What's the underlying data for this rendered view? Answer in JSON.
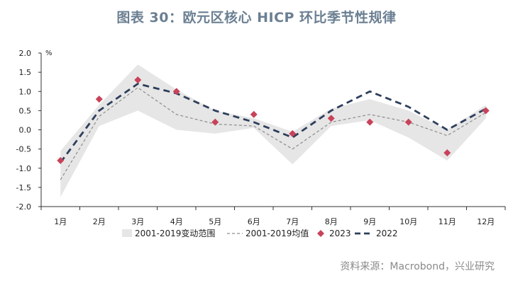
{
  "title": "图表 30：欧元区核心 HICP 环比季节性规律",
  "source": "资料来源：Macrobond，兴业研究",
  "chart_data": {
    "type": "line",
    "unit": "%",
    "categories": [
      "1月",
      "2月",
      "3月",
      "4月",
      "5月",
      "6月",
      "7月",
      "8月",
      "9月",
      "10月",
      "11月",
      "12月"
    ],
    "ylim": [
      -2.0,
      2.0
    ],
    "yticks": [
      2.0,
      1.5,
      1.0,
      0.5,
      0.0,
      -0.5,
      -1.0,
      -1.5,
      -2.0
    ],
    "ytick_labels": [
      "2.0",
      "1.5",
      "1.0",
      "0.5",
      "0.0",
      "-0.5",
      "-1.0",
      "-1.5",
      "-2.0"
    ],
    "legend_placement": "bottom",
    "band": {
      "name": "2001-2019变动范围",
      "color": "#e6e6e6",
      "lower": [
        -1.75,
        0.1,
        0.5,
        0.0,
        -0.1,
        0.05,
        -0.9,
        0.1,
        0.25,
        -0.2,
        -0.8,
        0.3
      ],
      "upper": [
        -0.55,
        0.65,
        1.7,
        1.05,
        0.5,
        0.3,
        -0.05,
        0.55,
        0.8,
        0.5,
        0.0,
        0.65
      ]
    },
    "series": [
      {
        "name": "2001-2019均值",
        "style": "dashed-thin",
        "color": "#8c8c8c",
        "values": [
          -1.3,
          0.35,
          1.1,
          0.4,
          0.15,
          0.1,
          -0.5,
          0.2,
          0.4,
          0.2,
          -0.15,
          0.45
        ]
      },
      {
        "name": "2023",
        "style": "diamond",
        "color": "#c8425a",
        "values": [
          -0.8,
          0.8,
          1.3,
          1.0,
          0.2,
          0.4,
          -0.1,
          0.3,
          0.2,
          0.2,
          -0.6,
          0.5
        ]
      },
      {
        "name": "2022",
        "style": "dashed-thick",
        "color": "#2e3f5c",
        "values": [
          -0.85,
          0.5,
          1.2,
          0.95,
          0.5,
          0.2,
          -0.2,
          0.5,
          1.0,
          0.6,
          0.0,
          0.55
        ]
      }
    ]
  }
}
